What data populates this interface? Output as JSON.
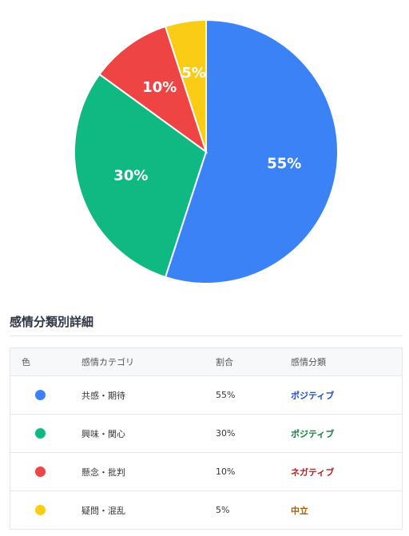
{
  "chart_data": {
    "type": "pie",
    "slices": [
      {
        "label": "55%",
        "value": 55,
        "color": "#3b82f6"
      },
      {
        "label": "30%",
        "value": 30,
        "color": "#10b981"
      },
      {
        "label": "10%",
        "value": 10,
        "color": "#ef4444"
      },
      {
        "label": "5%",
        "value": 5,
        "color": "#facc15"
      }
    ]
  },
  "section": {
    "title": "感情分類別詳細"
  },
  "table": {
    "headers": {
      "color": "色",
      "category": "感情カテゴリ",
      "ratio": "割合",
      "classification": "感情分類"
    },
    "rows": [
      {
        "color": "#3b82f6",
        "category": "共感・期待",
        "ratio": "55%",
        "classification": "ポジティブ",
        "class_color": "#1d4ed8"
      },
      {
        "color": "#10b981",
        "category": "興味・関心",
        "ratio": "30%",
        "classification": "ポジティブ",
        "class_color": "#15803d"
      },
      {
        "color": "#ef4444",
        "category": "懸念・批判",
        "ratio": "10%",
        "classification": "ネガティブ",
        "class_color": "#b91c1c"
      },
      {
        "color": "#facc15",
        "category": "疑問・混乱",
        "ratio": "5%",
        "classification": "中立",
        "class_color": "#a16207"
      }
    ]
  }
}
